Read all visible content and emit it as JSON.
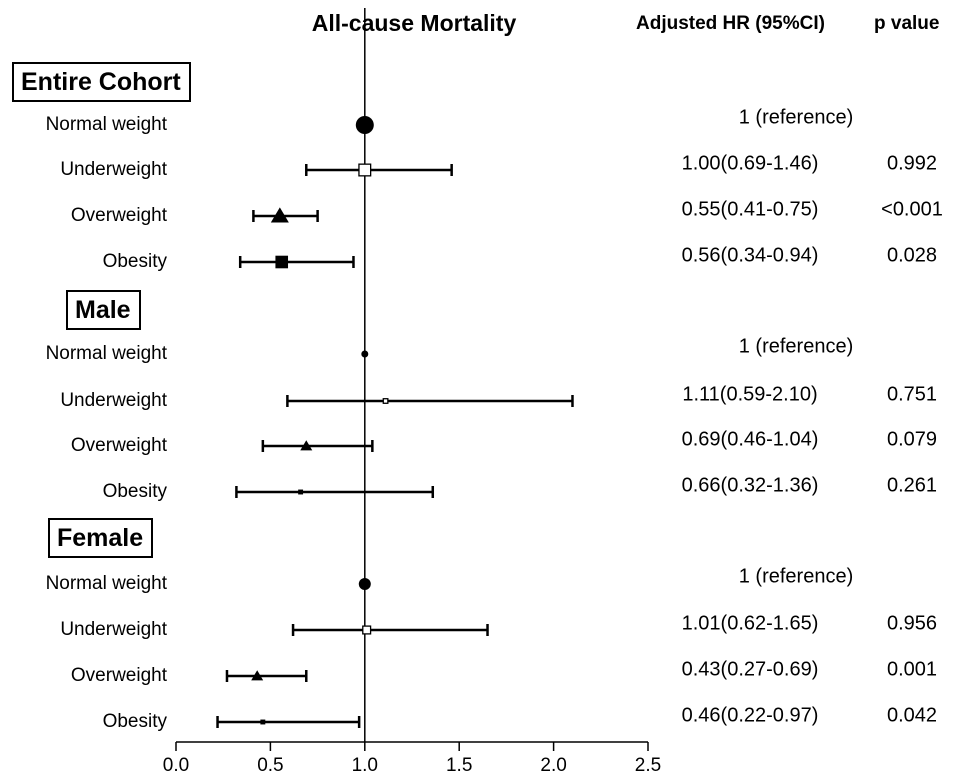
{
  "title": "All-cause Mortality",
  "col_headers": {
    "hr": "Adjusted HR (95%CI)",
    "p": "p value"
  },
  "chart_data": {
    "type": "forest",
    "title": "All-cause Mortality",
    "xlim": [
      0.0,
      2.5
    ],
    "xticks": [
      "0.0",
      "0.5",
      "1.0",
      "1.5",
      "2.0",
      "2.5"
    ],
    "reference_line": 1.0,
    "groups": [
      {
        "name": "Entire Cohort",
        "rows": [
          {
            "label": "Normal weight",
            "hr": 1.0,
            "lo": null,
            "hi": null,
            "marker": "circle",
            "size": "large",
            "hr_text": "1 (reference)",
            "p": ""
          },
          {
            "label": "Underweight",
            "hr": 1.0,
            "lo": 0.69,
            "hi": 1.46,
            "marker": "open-square",
            "size": "large",
            "hr_text": "1.00(0.69-1.46)",
            "p": "0.992"
          },
          {
            "label": "Overweight",
            "hr": 0.55,
            "lo": 0.41,
            "hi": 0.75,
            "marker": "triangle",
            "size": "large",
            "hr_text": "0.55(0.41-0.75)",
            "p": "<0.001"
          },
          {
            "label": "Obesity",
            "hr": 0.56,
            "lo": 0.34,
            "hi": 0.94,
            "marker": "square",
            "size": "large",
            "hr_text": "0.56(0.34-0.94)",
            "p": "0.028"
          }
        ]
      },
      {
        "name": "Male",
        "rows": [
          {
            "label": "Normal weight",
            "hr": 1.0,
            "lo": null,
            "hi": null,
            "marker": "circle",
            "size": "small",
            "hr_text": "1 (reference)",
            "p": ""
          },
          {
            "label": "Underweight",
            "hr": 1.11,
            "lo": 0.59,
            "hi": 2.1,
            "marker": "open-square",
            "size": "small",
            "hr_text": "1.11(0.59-2.10)",
            "p": "0.751"
          },
          {
            "label": "Overweight",
            "hr": 0.69,
            "lo": 0.46,
            "hi": 1.04,
            "marker": "triangle",
            "size": "medium",
            "hr_text": "0.69(0.46-1.04)",
            "p": "0.079"
          },
          {
            "label": "Obesity",
            "hr": 0.66,
            "lo": 0.32,
            "hi": 1.36,
            "marker": "square",
            "size": "small",
            "hr_text": "0.66(0.32-1.36)",
            "p": "0.261"
          }
        ]
      },
      {
        "name": "Female",
        "rows": [
          {
            "label": "Normal weight",
            "hr": 1.0,
            "lo": null,
            "hi": null,
            "marker": "circle",
            "size": "medium",
            "hr_text": "1 (reference)",
            "p": ""
          },
          {
            "label": "Underweight",
            "hr": 1.01,
            "lo": 0.62,
            "hi": 1.65,
            "marker": "open-square",
            "size": "medium",
            "hr_text": "1.01(0.62-1.65)",
            "p": "0.956"
          },
          {
            "label": "Overweight",
            "hr": 0.43,
            "lo": 0.27,
            "hi": 0.69,
            "marker": "triangle",
            "size": "medium",
            "hr_text": "0.43(0.27-0.69)",
            "p": "0.001"
          },
          {
            "label": "Obesity",
            "hr": 0.46,
            "lo": 0.22,
            "hi": 0.97,
            "marker": "square",
            "size": "small",
            "hr_text": "0.46(0.22-0.97)",
            "p": "0.042"
          }
        ]
      }
    ]
  }
}
